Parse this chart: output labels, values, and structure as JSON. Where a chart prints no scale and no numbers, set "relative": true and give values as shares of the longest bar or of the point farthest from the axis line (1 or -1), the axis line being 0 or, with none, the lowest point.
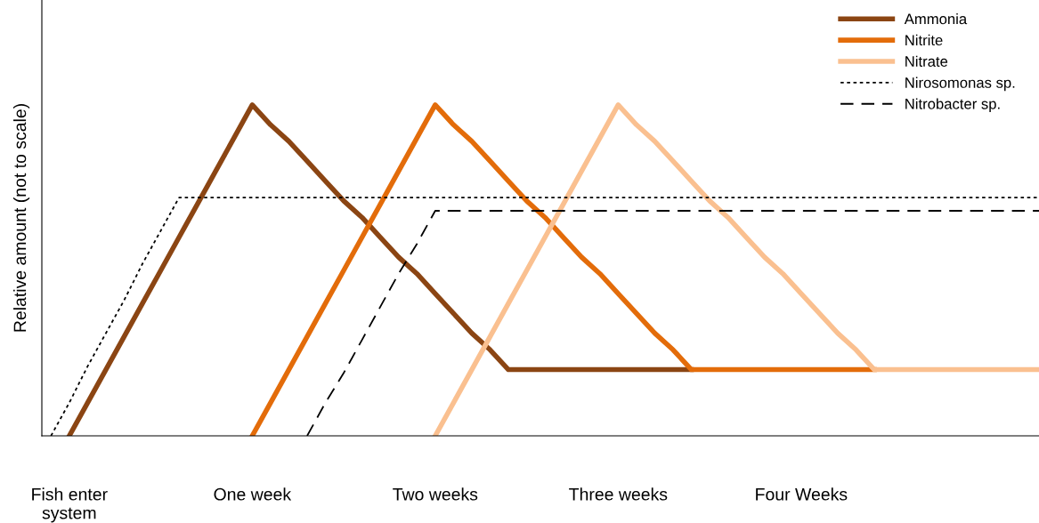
{
  "chart_data": {
    "type": "line",
    "relative": true,
    "ylabel": "Relative amount (not to scale)",
    "categories": [
      null,
      "Fish enter\nsystem",
      null,
      null,
      null,
      null,
      null,
      null,
      null,
      null,
      null,
      "One week",
      null,
      null,
      null,
      null,
      null,
      null,
      null,
      null,
      null,
      "Two weeks",
      null,
      null,
      null,
      null,
      null,
      null,
      null,
      null,
      null,
      "Three weeks",
      null,
      null,
      null,
      null,
      null,
      null,
      null,
      null,
      null,
      "Four Weeks",
      null,
      null,
      null,
      null,
      null,
      null,
      null,
      null,
      null,
      null,
      null,
      null,
      null
    ],
    "tick_labels": "x",
    "grid": false,
    "legend": "top right",
    "series": [
      {
        "name": "Ammonia",
        "color": "#8b4513",
        "line_style": "solid",
        "values": [
          null,
          0,
          0.1,
          0.2,
          0.3,
          0.4,
          0.5,
          0.6,
          0.7,
          0.8,
          0.9,
          1,
          0.94,
          0.89,
          0.83,
          0.77,
          0.71,
          0.66,
          0.6,
          0.54,
          0.49,
          0.43,
          0.37,
          0.31,
          0.26,
          0.2,
          0.2,
          0.2,
          0.2,
          0.2,
          0.2,
          0.2,
          0.2,
          0.2,
          0.2,
          0.2,
          null,
          null,
          null,
          null,
          null,
          null,
          null,
          null,
          null,
          null,
          null,
          null,
          null,
          null,
          null,
          null,
          null,
          null,
          null
        ]
      },
      {
        "name": "Nitrite",
        "color": "#e36c0a",
        "line_style": "solid",
        "values": [
          null,
          null,
          null,
          null,
          null,
          null,
          null,
          null,
          null,
          null,
          null,
          0,
          0.1,
          0.2,
          0.3,
          0.4,
          0.5,
          0.6,
          0.7,
          0.8,
          0.9,
          1,
          0.94,
          0.89,
          0.83,
          0.77,
          0.71,
          0.66,
          0.6,
          0.54,
          0.49,
          0.43,
          0.37,
          0.31,
          0.26,
          0.2,
          0.2,
          0.2,
          0.2,
          0.2,
          0.2,
          0.2,
          0.2,
          0.2,
          0.2,
          0.2,
          null,
          null,
          null,
          null,
          null,
          null,
          null,
          null,
          null
        ]
      },
      {
        "name": "Nitrate",
        "color": "#fac090",
        "line_style": "solid",
        "values": [
          null,
          null,
          null,
          null,
          null,
          null,
          null,
          null,
          null,
          null,
          null,
          null,
          null,
          null,
          null,
          null,
          null,
          null,
          null,
          null,
          null,
          0,
          0.1,
          0.2,
          0.3,
          0.4,
          0.5,
          0.6,
          0.7,
          0.8,
          0.9,
          1,
          0.94,
          0.89,
          0.83,
          0.77,
          0.71,
          0.66,
          0.6,
          0.54,
          0.49,
          0.43,
          0.37,
          0.31,
          0.26,
          0.2,
          0.2,
          0.2,
          0.2,
          0.2,
          0.2,
          0.2,
          0.2,
          0.2,
          0.2
        ]
      },
      {
        "name": "Nirosomonas sp.",
        "color": "#000000",
        "line_style": "dotted",
        "values": [
          0,
          0.1,
          0.21,
          0.31,
          0.41,
          0.52,
          0.62,
          0.72,
          0.72,
          0.72,
          0.72,
          0.72,
          0.72,
          0.72,
          0.72,
          0.72,
          0.72,
          0.72,
          0.72,
          0.72,
          0.72,
          0.72,
          0.72,
          0.72,
          0.72,
          0.72,
          0.72,
          0.72,
          0.72,
          0.72,
          0.72,
          0.72,
          0.72,
          0.72,
          0.72,
          0.72,
          0.72,
          0.72,
          0.72,
          0.72,
          0.72,
          0.72,
          0.72,
          0.72,
          0.72,
          0.72,
          0.72,
          0.72,
          0.72,
          0.72,
          0.72,
          0.72,
          0.72,
          0.72,
          0.72
        ]
      },
      {
        "name": "Nitrobacter sp.",
        "color": "#000000",
        "line_style": "dashed",
        "values": [
          null,
          null,
          null,
          null,
          null,
          null,
          null,
          null,
          null,
          null,
          null,
          null,
          null,
          null,
          0,
          0.1,
          0.19,
          0.29,
          0.39,
          0.49,
          0.58,
          0.68,
          0.68,
          0.68,
          0.68,
          0.68,
          0.68,
          0.68,
          0.68,
          0.68,
          0.68,
          0.68,
          0.68,
          0.68,
          0.68,
          0.68,
          0.68,
          0.68,
          0.68,
          0.68,
          0.68,
          0.68,
          0.68,
          0.68,
          0.68,
          0.68,
          0.68,
          0.68,
          0.68,
          0.68,
          0.68,
          0.68,
          0.68,
          0.68,
          0.68
        ]
      }
    ]
  }
}
